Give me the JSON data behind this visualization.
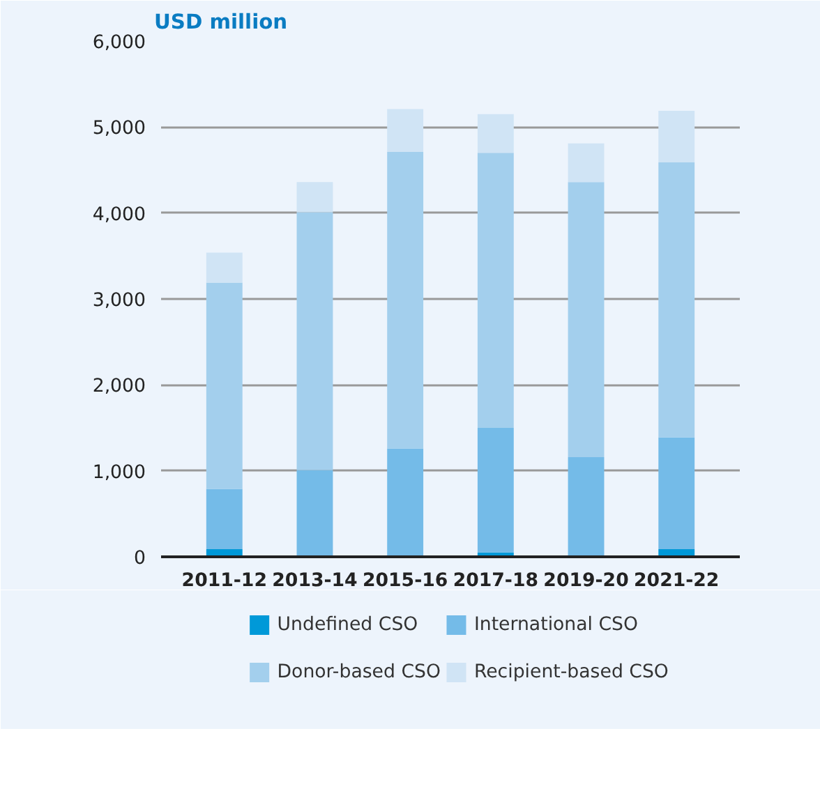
{
  "chart_data": {
    "type": "bar",
    "stacked": true,
    "ylabel": "USD million",
    "categories": [
      "2011-12",
      "2013-14",
      "2015-16",
      "2017-18",
      "2019-20",
      "2021-22"
    ],
    "series": [
      {
        "name": "Undefined CSO",
        "color": "#0099d8",
        "values": [
          90,
          10,
          10,
          50,
          10,
          90
        ]
      },
      {
        "name": "International CSO",
        "color": "#74bbe8",
        "values": [
          700,
          1000,
          1250,
          1450,
          1150,
          1300
        ]
      },
      {
        "name": "Donor-based CSO",
        "color": "#a3cfed",
        "values": [
          2400,
          3000,
          3450,
          3200,
          3200,
          3200
        ]
      },
      {
        "name": "Recipient-based CSO",
        "color": "#d0e4f5",
        "values": [
          350,
          350,
          500,
          450,
          450,
          600
        ]
      }
    ],
    "ylim": [
      0,
      6000
    ],
    "yticks": [
      0,
      {
        "value": 1000,
        "label": "1,000"
      },
      {
        "value": 2000,
        "label": "2,000"
      },
      {
        "value": 3000,
        "label": "3,000"
      },
      {
        "value": 4000,
        "label": "4,000"
      },
      {
        "value": 5000,
        "label": "5,000"
      },
      {
        "value": 6000,
        "label": "6,000"
      }
    ],
    "grid": "y",
    "legend": "bottom"
  }
}
